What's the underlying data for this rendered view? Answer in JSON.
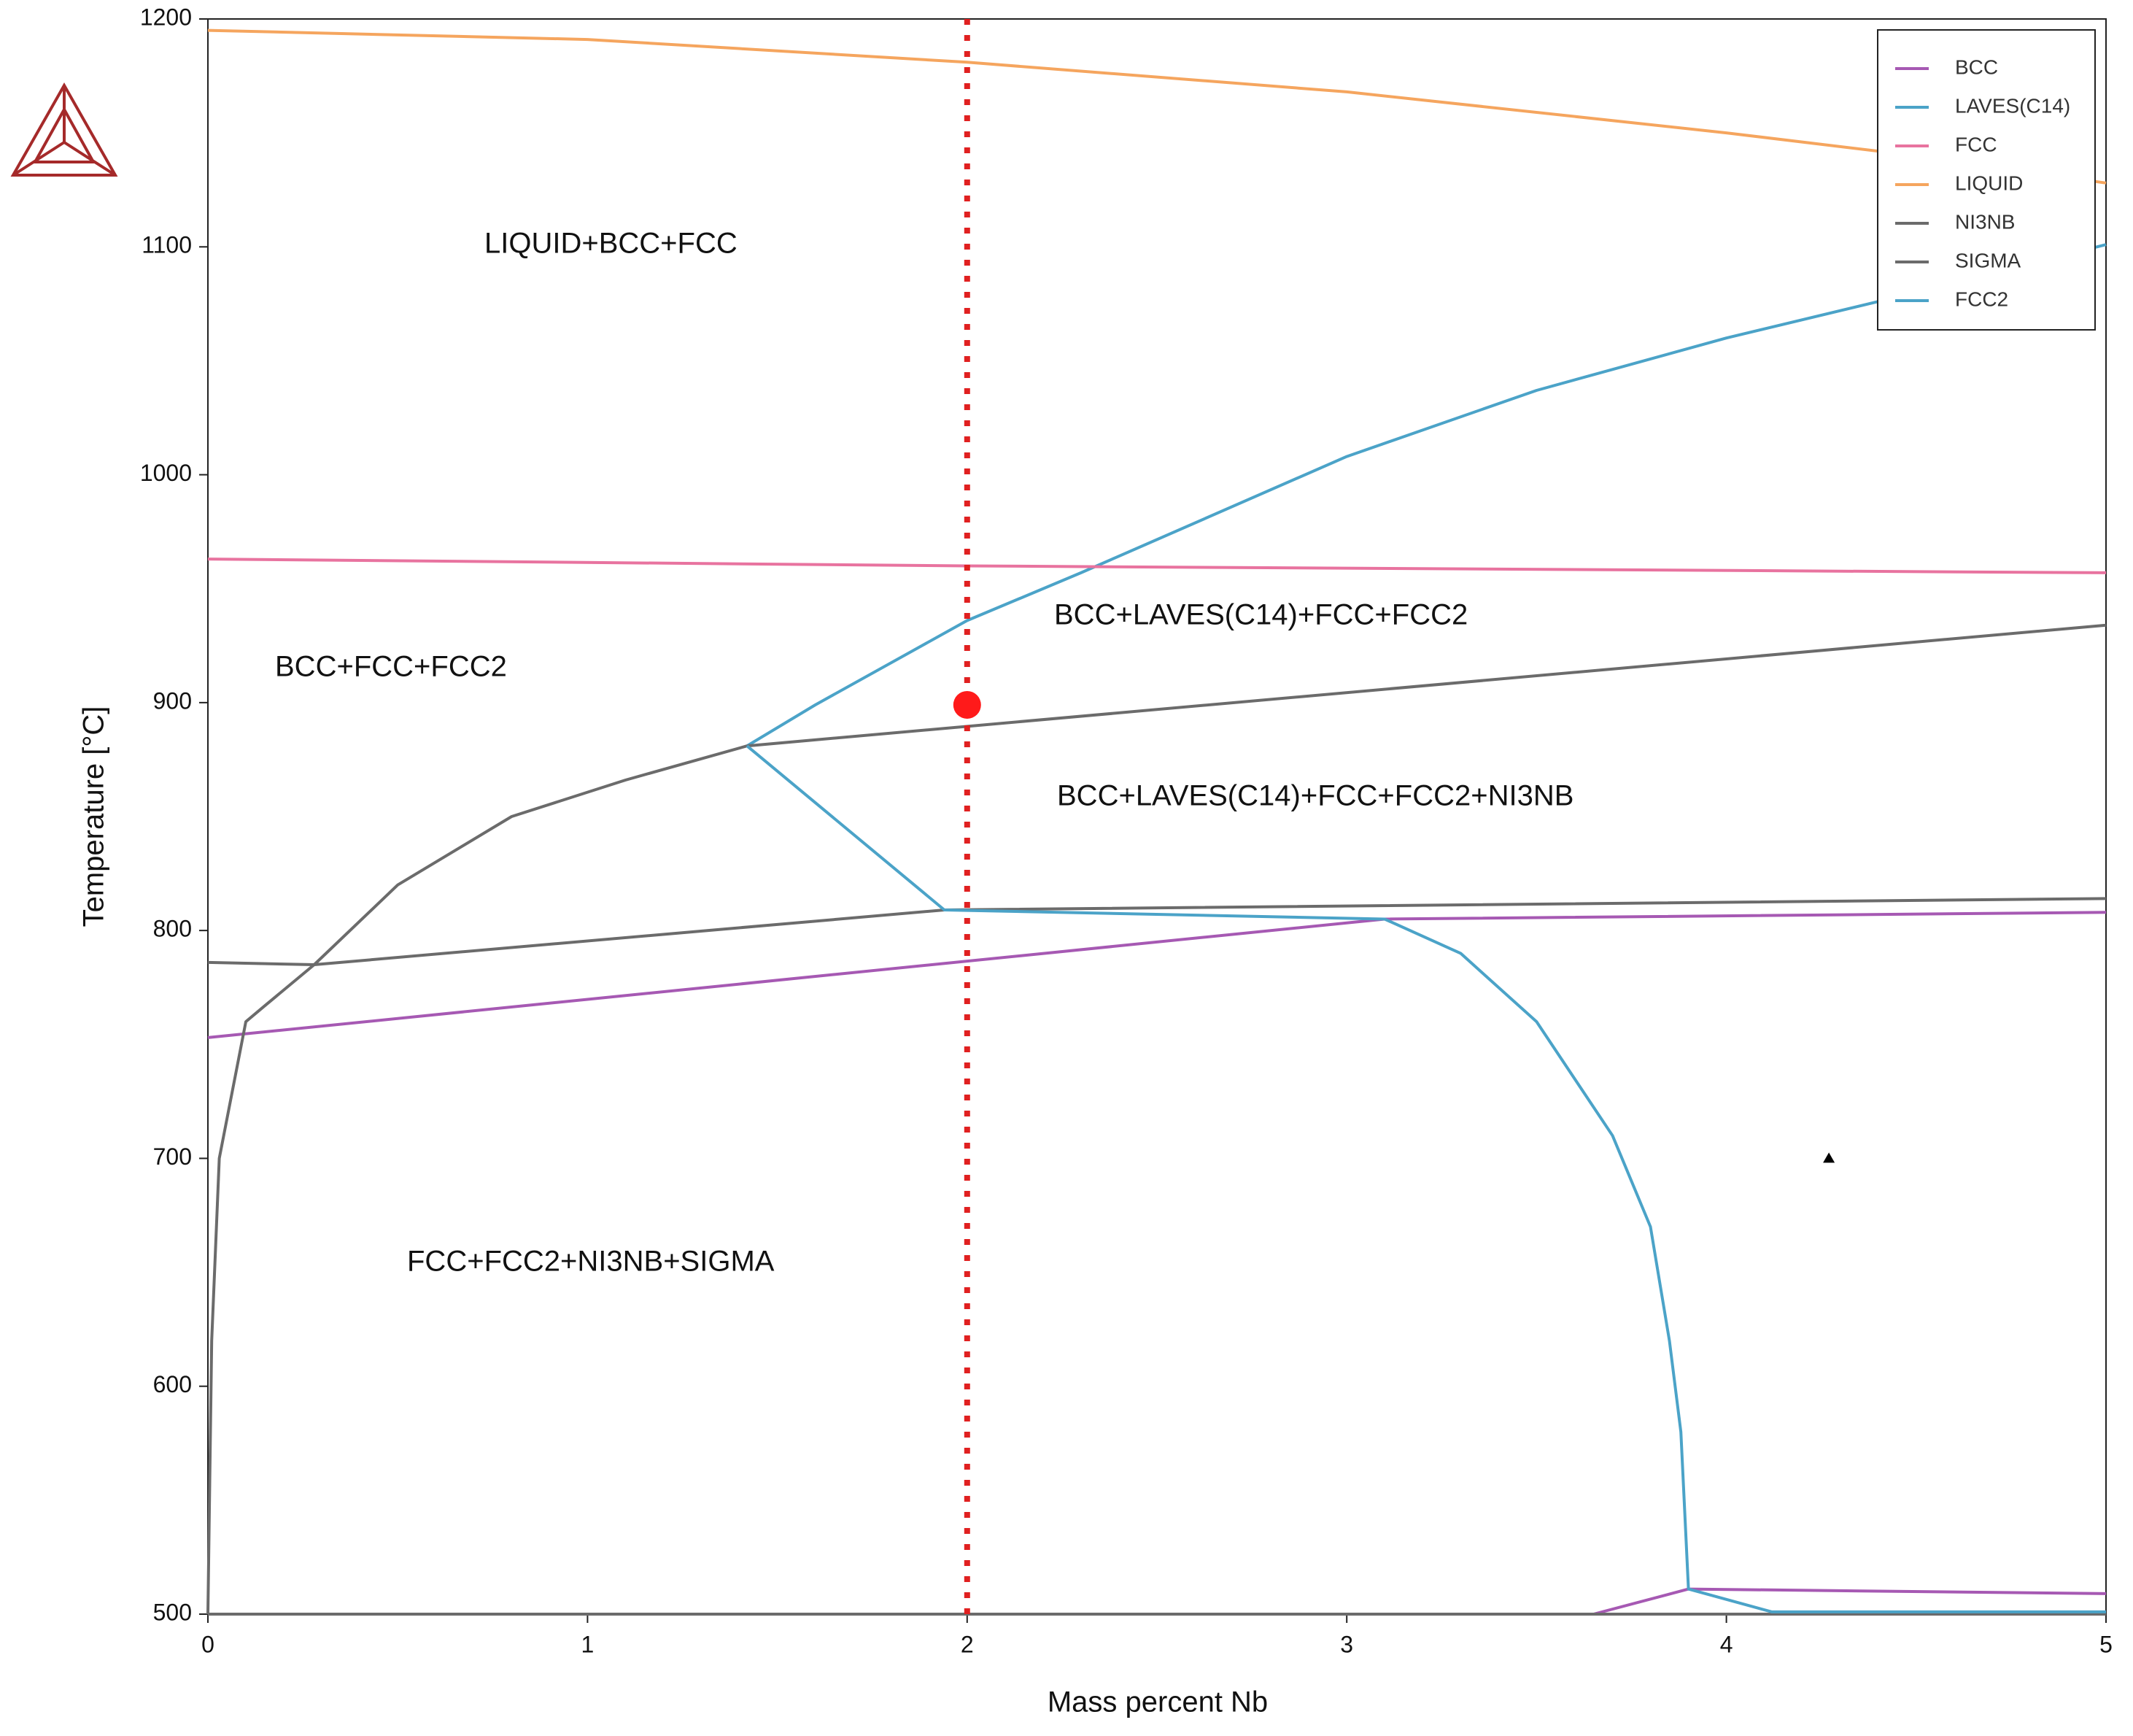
{
  "chart_data": {
    "type": "line",
    "x_label": "Mass percent Nb",
    "y_label": "Temperature [°C]",
    "xlim": [
      0,
      5
    ],
    "ylim": [
      500,
      1200
    ],
    "xticks": [
      0,
      1,
      2,
      3,
      4,
      5
    ],
    "yticks": [
      500,
      600,
      700,
      800,
      900,
      1000,
      1100,
      1200
    ],
    "legend": "top-right",
    "series": [
      {
        "name": "BCC",
        "color": "#a659b3",
        "x": [
          0,
          3.1,
          5,
          null,
          3.65,
          3.9,
          5
        ],
        "values": [
          753,
          805,
          808,
          null,
          500,
          511,
          509
        ]
      },
      {
        "name": "LAVES(C14)",
        "color": "#4ba3c8",
        "x": [
          1.42,
          1.6,
          2.0,
          2.3,
          3.0,
          3.5,
          4.0,
          4.5,
          5
        ],
        "values": [
          881,
          899,
          936,
          957,
          1008,
          1037,
          1060,
          1080,
          1101
        ]
      },
      {
        "name": "FCC",
        "color": "#e8739f",
        "x": [
          0,
          2,
          5
        ],
        "values": [
          963,
          960,
          957
        ]
      },
      {
        "name": "LIQUID",
        "color": "#f5a55e",
        "x": [
          0,
          1,
          2,
          3,
          4,
          4.5,
          5
        ],
        "values": [
          1195,
          1191,
          1181,
          1168,
          1150,
          1140,
          1128
        ]
      },
      {
        "name": "NI3NB",
        "color": "#6b6b6b",
        "x": [
          0,
          0.28,
          1.94,
          5,
          null,
          1.42,
          5
        ],
        "values": [
          786,
          785,
          809,
          814,
          null,
          881,
          934
        ]
      },
      {
        "name": "SIGMA",
        "color": "#6b6b6b",
        "x": [
          0,
          0.01,
          0.03,
          0.1,
          0.15,
          0.28,
          0.5,
          0.8,
          1.1,
          1.42,
          null,
          0,
          5
        ],
        "values": [
          500,
          620,
          700,
          760,
          767,
          785,
          820,
          850,
          866,
          881,
          null,
          500,
          500
        ]
      },
      {
        "name": "FCC2",
        "color": "#4ba3c8",
        "x": [
          1.42,
          1.94,
          3.1,
          3.3,
          3.5,
          3.7,
          3.8,
          3.85,
          3.88,
          3.9,
          4.12,
          5
        ],
        "values": [
          881,
          809,
          805,
          790,
          760,
          710,
          670,
          620,
          580,
          511,
          501,
          501
        ]
      }
    ],
    "vline": {
      "x": 2,
      "color": "#e02020"
    },
    "point": {
      "x": 2,
      "y": 899,
      "color": "#ff1a1a"
    },
    "triangle": {
      "x": 4.27,
      "y": 700
    },
    "annotations": [
      "LIQUID+BCC+FCC",
      "BCC+FCC+FCC2",
      "BCC+LAVES(C14)+FCC+FCC2",
      "BCC+LAVES(C14)+FCC+FCC2+NI3NB",
      "FCC+FCC2+NI3NB+SIGMA"
    ]
  }
}
